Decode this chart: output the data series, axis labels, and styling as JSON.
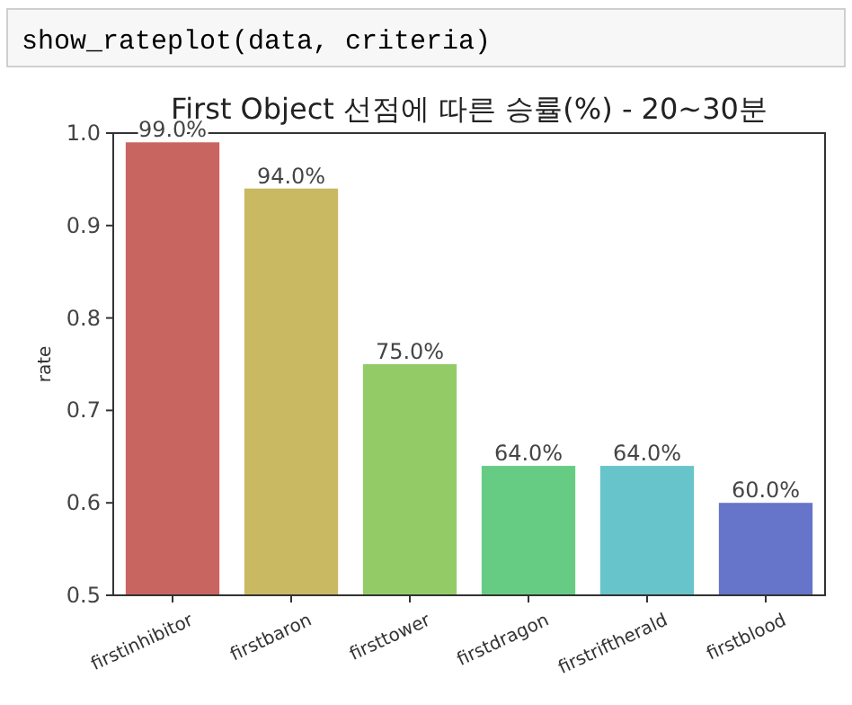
{
  "chart_data": {
    "type": "bar",
    "title": "First Object 선점에 따른 승률(%) - 20~30분",
    "ylabel": "rate",
    "categories": [
      "firstinhibitor",
      "firstbaron",
      "firsttower",
      "firstdragon",
      "firstriftherald",
      "firstblood"
    ],
    "values": [
      0.99,
      0.94,
      0.75,
      0.64,
      0.64,
      0.6
    ],
    "value_labels": [
      "99.0%",
      "94.0%",
      "75.0%",
      "64.0%",
      "64.0%",
      "60.0%"
    ],
    "colors": [
      "#c96561",
      "#c9b962",
      "#93cc67",
      "#66cc83",
      "#67c4cb",
      "#6675c9"
    ],
    "ylim": [
      0.5,
      1.0
    ],
    "yticks": [
      0.5,
      0.6,
      0.7,
      0.8,
      0.9,
      {
        "value": 1.0,
        "label": "1.0"
      }
    ],
    "grid": false,
    "annotations": [
      "show_rateplot(data, criteria)"
    ]
  }
}
